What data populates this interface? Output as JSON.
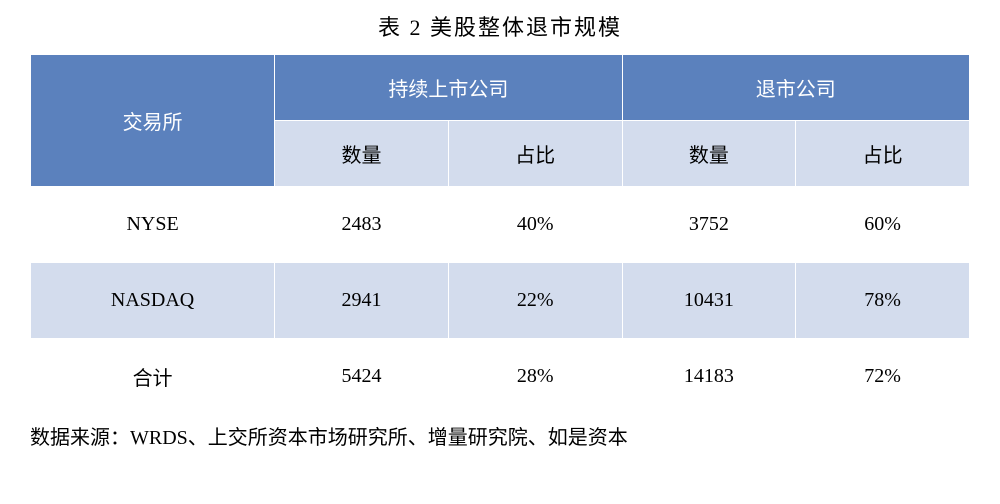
{
  "title": "表 2    美股整体退市规模",
  "table": {
    "headers": {
      "exchange": "交易所",
      "continuing": "持续上市公司",
      "delisted": "退市公司",
      "count": "数量",
      "ratio": "占比"
    },
    "rows": [
      {
        "exchange": "NYSE",
        "cont_count": "2483",
        "cont_ratio": "40%",
        "delist_count": "3752",
        "delist_ratio": "60%"
      },
      {
        "exchange": "NASDAQ",
        "cont_count": "2941",
        "cont_ratio": "22%",
        "delist_count": "10431",
        "delist_ratio": "78%"
      },
      {
        "exchange": "合计",
        "cont_count": "5424",
        "cont_ratio": "28%",
        "delist_count": "14183",
        "delist_ratio": "72%"
      }
    ]
  },
  "source": "数据来源：WRDS、上交所资本市场研究所、增量研究院、如是资本",
  "colors": {
    "header_bg": "#5b81bd",
    "header_text": "#ffffff",
    "subheader_bg": "#d3dced",
    "row_even_bg": "#d3dced",
    "row_odd_bg": "#ffffff",
    "border_color": "#ffffff",
    "text_color": "#000000"
  }
}
